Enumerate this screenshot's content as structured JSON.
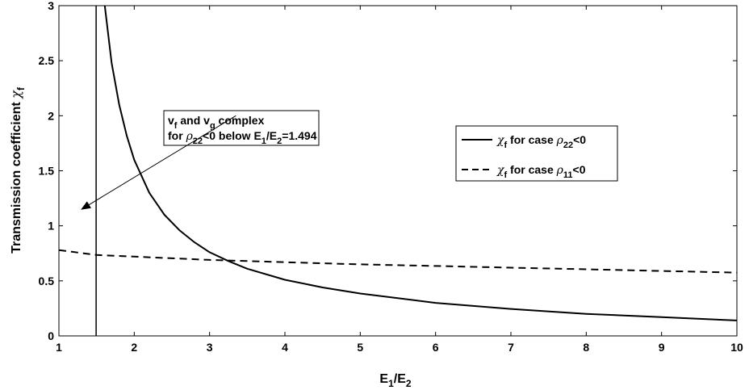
{
  "chart_data": {
    "type": "line",
    "title": "",
    "xlabel": {
      "main": "E",
      "sub1": "1",
      "slash": "/E",
      "sub2": "2"
    },
    "ylabel": {
      "text": "Transmission coefficient ",
      "symbol": "χ",
      "sub": "f"
    },
    "xlim": [
      1,
      10
    ],
    "ylim": [
      0,
      3
    ],
    "xticks": [
      1,
      2,
      3,
      4,
      5,
      6,
      7,
      8,
      9,
      10
    ],
    "yticks": [
      0,
      0.5,
      1,
      1.5,
      2,
      2.5,
      3
    ],
    "ytick_labels": [
      "0",
      "0.5",
      "1",
      "1.5",
      "2",
      "2.5",
      "3"
    ],
    "grid": false,
    "legend_position": "right",
    "series": [
      {
        "id": "rho22",
        "style": "solid",
        "color": "#000000",
        "legend": {
          "symbol": "χ",
          "sub": "f",
          "mid": " for case ",
          "rho": "ρ",
          "rho_sub": "22",
          "tail": "<0"
        },
        "x": [
          1.6,
          1.7,
          1.8,
          1.9,
          2.0,
          2.2,
          2.4,
          2.6,
          2.8,
          3.0,
          3.25,
          3.5,
          4.0,
          4.5,
          5.0,
          6.0,
          7.0,
          8.0,
          9.0,
          10.0
        ],
        "y": [
          3.05,
          2.48,
          2.1,
          1.82,
          1.6,
          1.3,
          1.1,
          0.96,
          0.85,
          0.76,
          0.68,
          0.61,
          0.51,
          0.44,
          0.385,
          0.3,
          0.245,
          0.2,
          0.17,
          0.14
        ]
      },
      {
        "id": "rho11",
        "style": "dashed",
        "color": "#000000",
        "legend": {
          "symbol": "χ",
          "sub": "f",
          "mid": " for case ",
          "rho": "ρ",
          "rho_sub": "11",
          "tail": "<0"
        },
        "x": [
          1.0,
          1.5,
          2.0,
          3.0,
          4.0,
          5.0,
          6.0,
          7.0,
          8.0,
          9.0,
          10.0
        ],
        "y": [
          0.78,
          0.735,
          0.72,
          0.69,
          0.67,
          0.65,
          0.635,
          0.62,
          0.605,
          0.59,
          0.575
        ]
      }
    ],
    "vline": {
      "x": 1.494
    },
    "annotation": {
      "line1": {
        "v1": "v",
        "s1": "f",
        "and": " and v",
        "s2": "g",
        "rest": " complex"
      },
      "line2": {
        "pre": " for ",
        "rho": "ρ",
        "rho_sub": "22",
        "mid": "<0 below E",
        "s1": "1",
        "slash": "/E",
        "s2": "2",
        "tail": "=1.494"
      },
      "arrow_from": [
        3.35,
        2.0
      ],
      "arrow_to": [
        1.3,
        1.15
      ]
    }
  }
}
